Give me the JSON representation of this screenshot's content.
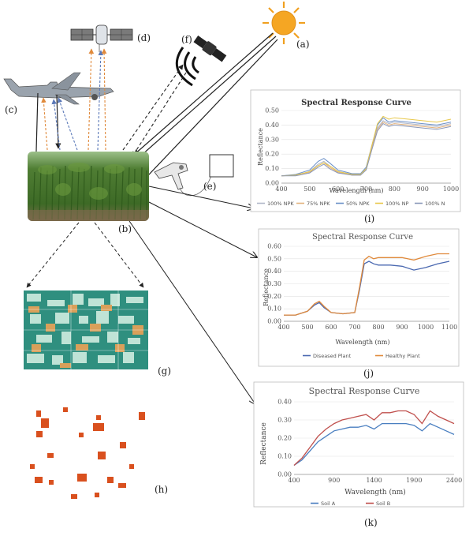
{
  "labels": {
    "a": "(a)",
    "b": "(b)",
    "c": "(c)",
    "d": "(d)",
    "e": "(e)",
    "f": "(f)",
    "g": "(g)",
    "h": "(h)",
    "i": "(i)",
    "j": "(j)",
    "k": "(k)"
  },
  "colors": {
    "sun": "#f5a623",
    "field_green": "#4d7a2e",
    "ndvi_teal": "#2f8f7f",
    "stress_orange": "#d27a2a",
    "patch_red": "#d9501e"
  },
  "chart_data": [
    {
      "id": "i",
      "type": "line",
      "title": "Spectral Response Curve",
      "xlabel": "Wavelength (nm)",
      "ylabel": "Reflectance",
      "xlim": [
        400,
        1000
      ],
      "ylim": [
        0,
        0.5
      ],
      "xticks": [
        "400",
        "500",
        "600",
        "700",
        "800",
        "900",
        "1000"
      ],
      "yticks": [
        "0.00",
        "0.10",
        "0.20",
        "0.30",
        "0.40",
        "0.50"
      ],
      "x": [
        400,
        450,
        500,
        530,
        550,
        570,
        600,
        650,
        680,
        700,
        720,
        740,
        760,
        780,
        800,
        850,
        900,
        950,
        1000
      ],
      "series": [
        {
          "name": "100% NPK",
          "color": "#b0b7c9",
          "values": [
            0.05,
            0.055,
            0.08,
            0.13,
            0.15,
            0.12,
            0.08,
            0.06,
            0.06,
            0.1,
            0.25,
            0.38,
            0.43,
            0.41,
            0.42,
            0.41,
            0.4,
            0.39,
            0.41
          ]
        },
        {
          "name": "75% NPK",
          "color": "#e3b27d",
          "values": [
            0.05,
            0.055,
            0.075,
            0.12,
            0.14,
            0.11,
            0.075,
            0.055,
            0.055,
            0.1,
            0.24,
            0.37,
            0.42,
            0.4,
            0.41,
            0.4,
            0.39,
            0.38,
            0.4
          ]
        },
        {
          "name": "50% NPK",
          "color": "#6b90c8",
          "values": [
            0.05,
            0.06,
            0.09,
            0.15,
            0.17,
            0.14,
            0.09,
            0.065,
            0.065,
            0.11,
            0.26,
            0.4,
            0.45,
            0.42,
            0.43,
            0.42,
            0.41,
            0.4,
            0.42
          ]
        },
        {
          "name": "100% NP",
          "color": "#e8c84a",
          "values": [
            0.05,
            0.055,
            0.08,
            0.12,
            0.14,
            0.12,
            0.08,
            0.06,
            0.06,
            0.1,
            0.26,
            0.41,
            0.46,
            0.44,
            0.45,
            0.44,
            0.43,
            0.42,
            0.44
          ]
        },
        {
          "name": "100% N",
          "color": "#8a97b8",
          "values": [
            0.05,
            0.05,
            0.07,
            0.11,
            0.13,
            0.1,
            0.07,
            0.055,
            0.055,
            0.09,
            0.23,
            0.36,
            0.41,
            0.39,
            0.4,
            0.39,
            0.38,
            0.37,
            0.39
          ]
        }
      ]
    },
    {
      "id": "j",
      "type": "line",
      "title": "Spectral Response Curve",
      "xlabel": "Wavelength (nm)",
      "ylabel": "Reflectance",
      "xlim": [
        400,
        1100
      ],
      "ylim": [
        0,
        0.6
      ],
      "xticks": [
        "400",
        "500",
        "600",
        "700",
        "800",
        "900",
        "1000",
        "1100"
      ],
      "yticks": [
        "0.00",
        "0.10",
        "0.20",
        "0.30",
        "0.40",
        "0.50",
        "0.60"
      ],
      "x": [
        400,
        450,
        500,
        530,
        550,
        570,
        600,
        650,
        700,
        720,
        740,
        760,
        780,
        800,
        850,
        900,
        950,
        1000,
        1050,
        1100
      ],
      "series": [
        {
          "name": "Diseased Plant",
          "color": "#4a68b0",
          "values": [
            0.05,
            0.05,
            0.08,
            0.13,
            0.15,
            0.11,
            0.07,
            0.06,
            0.07,
            0.25,
            0.46,
            0.48,
            0.46,
            0.45,
            0.45,
            0.44,
            0.41,
            0.43,
            0.46,
            0.48
          ]
        },
        {
          "name": "Healthy Plant",
          "color": "#e08a3c",
          "values": [
            0.05,
            0.05,
            0.08,
            0.14,
            0.16,
            0.12,
            0.07,
            0.06,
            0.07,
            0.27,
            0.49,
            0.52,
            0.5,
            0.51,
            0.51,
            0.51,
            0.49,
            0.52,
            0.54,
            0.54
          ]
        }
      ]
    },
    {
      "id": "k",
      "type": "line",
      "title": "Spectral Response Curve",
      "xlabel": "Wavelength (nm)",
      "ylabel": "Reflectance",
      "xlim": [
        400,
        2400
      ],
      "ylim": [
        0,
        0.4
      ],
      "xticks": [
        "400",
        "900",
        "1400",
        "1900",
        "2400"
      ],
      "yticks": [
        "0.00",
        "0.10",
        "0.20",
        "0.30",
        "0.40"
      ],
      "x": [
        400,
        500,
        600,
        700,
        800,
        900,
        1000,
        1100,
        1200,
        1300,
        1400,
        1500,
        1600,
        1700,
        1800,
        1900,
        2000,
        2100,
        2200,
        2300,
        2400
      ],
      "series": [
        {
          "name": "Soil A",
          "color": "#4a7fc0",
          "values": [
            0.05,
            0.08,
            0.13,
            0.18,
            0.21,
            0.24,
            0.25,
            0.26,
            0.26,
            0.27,
            0.25,
            0.28,
            0.28,
            0.28,
            0.28,
            0.27,
            0.24,
            0.28,
            0.26,
            0.24,
            0.22
          ]
        },
        {
          "name": "Soil B",
          "color": "#c0504d",
          "values": [
            0.05,
            0.09,
            0.15,
            0.21,
            0.25,
            0.28,
            0.3,
            0.31,
            0.32,
            0.33,
            0.3,
            0.34,
            0.34,
            0.35,
            0.35,
            0.33,
            0.28,
            0.35,
            0.32,
            0.3,
            0.28
          ]
        }
      ]
    }
  ]
}
